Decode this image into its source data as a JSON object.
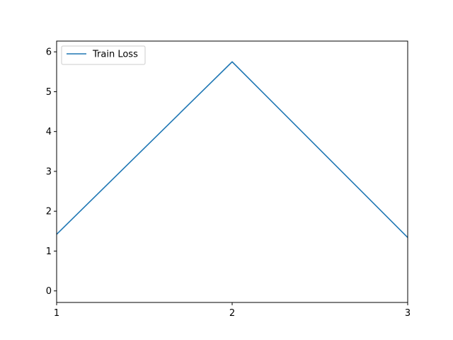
{
  "chart_data": {
    "type": "line",
    "title": "",
    "xlabel": "",
    "ylabel": "",
    "x": [
      1,
      2,
      3
    ],
    "series": [
      {
        "name": "Train Loss",
        "values": [
          1.42,
          5.75,
          1.34
        ],
        "color": "#1f77b4"
      }
    ],
    "xlim": [
      1,
      3
    ],
    "ylim": [
      -0.29,
      6.27
    ],
    "xticks": [
      1,
      2,
      3
    ],
    "yticks": [
      0,
      1,
      2,
      3,
      4,
      5,
      6
    ],
    "grid": false,
    "legend": "upper-left"
  }
}
